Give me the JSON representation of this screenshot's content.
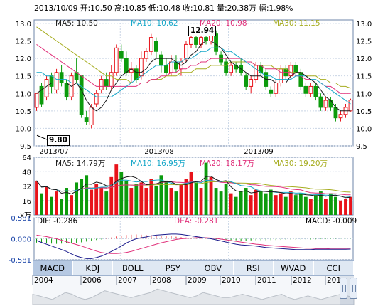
{
  "quote": {
    "date": "2013/10/09",
    "open_label": "开:",
    "open": "10.50",
    "high_label": "高:",
    "high": "10.85",
    "low_label": "低:",
    "low": "10.48",
    "close_label": "收:",
    "close": "10.81",
    "volume_label": "量:",
    "volume": "20.38万",
    "change_label": "幅:",
    "change": "1.98%"
  },
  "colors": {
    "up": "#e8131a",
    "down": "#0c9b0c",
    "ma5": "#1a1a1a",
    "ma10": "#16a7c8",
    "ma20": "#e0307a",
    "ma30": "#a7ad20",
    "grid": "#c9d5e5",
    "frame": "#6c84a8"
  },
  "chart_data": [
    {
      "type": "candlestick",
      "title": "",
      "x_ticks": [
        "2013/07",
        "2013/08",
        "2013/09"
      ],
      "y_ticks": [
        "13.0",
        "12.5",
        "12.0",
        "11.5",
        "11.0",
        "10.5",
        "10.0",
        "9.5"
      ],
      "ylim": [
        9.5,
        13.1
      ],
      "ma_labels": [
        {
          "name": "MA5",
          "value": "10.50"
        },
        {
          "name": "MA10",
          "value": "10.62"
        },
        {
          "name": "MA20",
          "value": "10.98"
        },
        {
          "name": "MA30",
          "value": "11.15"
        }
      ],
      "annotations": {
        "max": "12.94",
        "min": "9.80"
      },
      "candles": [
        [
          10.6,
          11.0,
          11.0,
          10.5
        ],
        [
          11.2,
          10.7,
          11.3,
          10.6
        ],
        [
          10.9,
          11.4,
          11.5,
          10.8
        ],
        [
          11.5,
          11.2,
          11.6,
          11.0
        ],
        [
          11.1,
          11.6,
          11.7,
          11.0
        ],
        [
          11.6,
          11.3,
          11.8,
          11.2
        ],
        [
          11.3,
          10.9,
          11.4,
          10.8
        ],
        [
          10.9,
          11.5,
          11.6,
          10.8
        ],
        [
          11.6,
          11.4,
          12.0,
          11.3
        ],
        [
          11.5,
          10.4,
          11.5,
          10.3
        ],
        [
          10.3,
          10.2,
          10.5,
          10.1
        ],
        [
          10.1,
          10.6,
          10.7,
          10.0
        ],
        [
          10.7,
          11.0,
          11.1,
          10.6
        ],
        [
          11.1,
          11.4,
          11.5,
          11.0
        ],
        [
          11.4,
          11.2,
          11.6,
          11.1
        ],
        [
          11.2,
          11.6,
          11.8,
          11.1
        ],
        [
          11.6,
          12.3,
          12.4,
          11.5
        ],
        [
          12.2,
          12.0,
          12.4,
          11.9
        ],
        [
          12.0,
          11.6,
          12.2,
          11.5
        ],
        [
          11.6,
          11.7,
          11.9,
          11.3
        ],
        [
          11.7,
          11.4,
          11.8,
          11.3
        ],
        [
          11.5,
          12.0,
          12.2,
          11.4
        ],
        [
          12.0,
          12.2,
          12.3,
          11.9
        ],
        [
          12.2,
          12.6,
          12.7,
          12.1
        ],
        [
          12.5,
          12.2,
          12.6,
          12.0
        ],
        [
          12.1,
          11.8,
          12.2,
          11.6
        ],
        [
          11.8,
          11.6,
          12.0,
          11.5
        ],
        [
          11.6,
          11.9,
          12.1,
          11.5
        ],
        [
          11.9,
          11.7,
          12.1,
          11.6
        ],
        [
          11.7,
          11.9,
          12.0,
          11.5
        ],
        [
          12.0,
          12.4,
          12.5,
          11.9
        ],
        [
          12.4,
          12.6,
          12.8,
          12.3
        ],
        [
          12.6,
          12.4,
          12.7,
          12.3
        ],
        [
          12.4,
          12.6,
          12.7,
          12.3
        ],
        [
          12.6,
          12.5,
          12.94,
          12.4
        ],
        [
          12.5,
          12.7,
          12.8,
          12.4
        ],
        [
          12.7,
          12.2,
          12.8,
          12.1
        ],
        [
          12.1,
          11.9,
          12.2,
          11.8
        ],
        [
          11.9,
          11.6,
          12.0,
          11.5
        ],
        [
          11.6,
          11.8,
          11.9,
          11.5
        ],
        [
          11.8,
          11.7,
          11.9,
          11.6
        ],
        [
          11.8,
          11.6,
          12.0,
          11.5
        ],
        [
          11.5,
          11.2,
          11.6,
          11.1
        ],
        [
          11.2,
          11.4,
          11.5,
          11.0
        ],
        [
          11.4,
          11.8,
          11.9,
          11.3
        ],
        [
          11.8,
          11.6,
          11.9,
          11.5
        ],
        [
          11.6,
          11.2,
          11.7,
          11.1
        ],
        [
          11.1,
          11.0,
          11.2,
          10.9
        ],
        [
          11.0,
          11.3,
          11.4,
          10.9
        ],
        [
          11.3,
          11.7,
          11.8,
          11.2
        ],
        [
          11.7,
          11.5,
          11.8,
          11.4
        ],
        [
          11.5,
          11.8,
          11.9,
          11.4
        ],
        [
          11.8,
          11.6,
          11.9,
          11.5
        ],
        [
          11.6,
          11.2,
          11.7,
          11.1
        ],
        [
          11.2,
          11.0,
          11.3,
          10.9
        ],
        [
          11.0,
          11.2,
          11.3,
          10.9
        ],
        [
          11.2,
          10.9,
          11.3,
          10.8
        ],
        [
          10.9,
          10.6,
          11.0,
          10.5
        ],
        [
          10.6,
          10.8,
          10.9,
          10.5
        ],
        [
          10.8,
          10.6,
          10.9,
          10.5
        ],
        [
          10.6,
          10.3,
          10.7,
          10.2
        ],
        [
          10.3,
          10.4,
          10.5,
          10.2
        ],
        [
          10.4,
          10.6,
          10.7,
          10.3
        ],
        [
          10.5,
          10.81,
          10.85,
          10.48
        ]
      ],
      "ma": {
        "ma5": [
          11.0,
          11.1,
          11.2,
          11.3,
          11.3,
          11.3,
          11.3,
          11.2,
          11.3,
          11.1,
          10.8,
          10.6,
          10.5,
          10.6,
          10.8,
          11.1,
          11.3,
          11.5,
          11.6,
          11.7,
          11.6,
          11.6,
          11.7,
          11.9,
          12.0,
          12.0,
          12.0,
          12.0,
          11.9,
          11.8,
          11.9,
          12.1,
          12.2,
          12.4,
          12.5,
          12.5,
          12.4,
          12.3,
          12.1,
          11.9,
          11.8,
          11.7,
          11.6,
          11.5,
          11.5,
          11.5,
          11.4,
          11.4,
          11.3,
          11.3,
          11.3,
          11.5,
          11.6,
          11.6,
          11.5,
          11.4,
          11.3,
          11.1,
          10.9,
          10.8,
          10.6,
          10.5,
          10.5,
          10.5
        ],
        "ma10": [
          11.6,
          11.6,
          11.5,
          11.5,
          11.4,
          11.4,
          11.4,
          11.3,
          11.3,
          11.2,
          11.1,
          11.0,
          10.9,
          10.9,
          10.9,
          10.9,
          11.0,
          11.1,
          11.2,
          11.3,
          11.4,
          11.5,
          11.6,
          11.7,
          11.8,
          11.8,
          11.8,
          11.9,
          11.9,
          11.9,
          12.0,
          12.0,
          12.1,
          12.2,
          12.2,
          12.3,
          12.3,
          12.3,
          12.2,
          12.2,
          12.1,
          12.0,
          11.9,
          11.8,
          11.7,
          11.6,
          11.5,
          11.5,
          11.4,
          11.4,
          11.4,
          11.4,
          11.5,
          11.5,
          11.5,
          11.4,
          11.4,
          11.3,
          11.2,
          11.1,
          11.0,
          10.9,
          10.8,
          10.7
        ],
        "ma20": [
          12.4,
          12.3,
          12.2,
          12.1,
          12.0,
          11.9,
          11.8,
          11.7,
          11.6,
          11.5,
          11.4,
          11.3,
          11.2,
          11.2,
          11.2,
          11.2,
          11.2,
          11.2,
          11.2,
          11.2,
          11.2,
          11.3,
          11.3,
          11.4,
          11.4,
          11.5,
          11.5,
          11.6,
          11.6,
          11.7,
          11.7,
          11.8,
          11.8,
          11.9,
          11.9,
          12.0,
          12.0,
          12.0,
          12.0,
          12.0,
          12.0,
          12.0,
          11.9,
          11.9,
          11.8,
          11.8,
          11.7,
          11.7,
          11.7,
          11.6,
          11.6,
          11.6,
          11.5,
          11.5,
          11.4,
          11.4,
          11.3,
          11.3,
          11.2,
          11.2,
          11.1,
          11.0,
          11.0,
          11.0
        ],
        "ma30": [
          12.9,
          12.8,
          12.7,
          12.6,
          12.5,
          12.4,
          12.3,
          12.2,
          12.1,
          12.0,
          11.9,
          11.8,
          11.7,
          11.6,
          11.5,
          11.5,
          11.4,
          11.4,
          11.4,
          11.3,
          11.3,
          11.3,
          11.3,
          11.4,
          11.4,
          11.4,
          11.5,
          11.5,
          11.5,
          11.6,
          11.6,
          11.6,
          11.7,
          11.7,
          11.7,
          11.8,
          11.8,
          11.8,
          11.8,
          11.9,
          11.9,
          11.9,
          11.9,
          11.9,
          11.8,
          11.8,
          11.8,
          11.8,
          11.7,
          11.7,
          11.7,
          11.6,
          11.6,
          11.6,
          11.5,
          11.5,
          11.5,
          11.4,
          11.4,
          11.3,
          11.3,
          11.2,
          11.2,
          11.15
        ]
      }
    },
    {
      "type": "bar",
      "title": "",
      "y_ticks": [
        "64",
        "48",
        "32",
        "16"
      ],
      "unit": "x万",
      "ylim": [
        0,
        64
      ],
      "ma_labels": [
        {
          "name": "MA5",
          "value": "14.79万"
        },
        {
          "name": "MA10",
          "value": "16.95万"
        },
        {
          "name": "MA20",
          "value": "18.17万"
        },
        {
          "name": "MA30",
          "value": "19.20万"
        }
      ],
      "values": [
        38,
        24,
        32,
        20,
        26,
        18,
        30,
        22,
        36,
        40,
        44,
        28,
        34,
        30,
        26,
        42,
        56,
        48,
        38,
        30,
        34,
        36,
        30,
        40,
        32,
        44,
        38,
        30,
        26,
        34,
        40,
        48,
        36,
        30,
        58,
        42,
        30,
        26,
        34,
        24,
        20,
        26,
        30,
        22,
        28,
        26,
        24,
        28,
        22,
        24,
        20,
        26,
        22,
        24,
        20,
        18,
        22,
        26,
        18,
        24,
        20,
        16,
        18,
        20
      ]
    },
    {
      "type": "line",
      "title": "",
      "y_ticks": [
        "0.581",
        "0.000",
        "-0.581"
      ],
      "ylim": [
        -0.581,
        0.581
      ],
      "labels": {
        "dif_label": "DIF:",
        "dif": "-0.286",
        "dea_label": "DEA:",
        "dea": "-0.281",
        "macd_label": "MACD:",
        "macd": "-0.009"
      },
      "dif": [
        -0.05,
        -0.1,
        -0.15,
        -0.2,
        -0.25,
        -0.3,
        -0.35,
        -0.42,
        -0.48,
        -0.52,
        -0.55,
        -0.55,
        -0.52,
        -0.48,
        -0.42,
        -0.35,
        -0.28,
        -0.2,
        -0.12,
        -0.05,
        0.0,
        0.03,
        0.05,
        0.08,
        0.1,
        0.11,
        0.12,
        0.13,
        0.13,
        0.12,
        0.1,
        0.08,
        0.06,
        0.04,
        0.02,
        0.0,
        -0.03,
        -0.06,
        -0.09,
        -0.12,
        -0.15,
        -0.17,
        -0.18,
        -0.19,
        -0.2,
        -0.22,
        -0.24,
        -0.25,
        -0.26,
        -0.27,
        -0.28,
        -0.29,
        -0.3,
        -0.3,
        -0.3,
        -0.3,
        -0.29,
        -0.29,
        -0.29,
        -0.29,
        -0.29,
        -0.29,
        -0.29,
        -0.286
      ],
      "dea": [
        0.1,
        0.08,
        0.06,
        0.03,
        0.0,
        -0.04,
        -0.08,
        -0.12,
        -0.16,
        -0.2,
        -0.25,
        -0.3,
        -0.34,
        -0.38,
        -0.4,
        -0.41,
        -0.41,
        -0.4,
        -0.38,
        -0.35,
        -0.31,
        -0.27,
        -0.23,
        -0.19,
        -0.15,
        -0.11,
        -0.08,
        -0.05,
        -0.02,
        0.0,
        0.01,
        0.02,
        0.03,
        0.03,
        0.03,
        0.02,
        0.01,
        -0.01,
        -0.03,
        -0.05,
        -0.07,
        -0.09,
        -0.11,
        -0.13,
        -0.15,
        -0.16,
        -0.18,
        -0.19,
        -0.2,
        -0.21,
        -0.22,
        -0.23,
        -0.24,
        -0.25,
        -0.26,
        -0.26,
        -0.27,
        -0.27,
        -0.27,
        -0.28,
        -0.28,
        -0.28,
        -0.28,
        -0.281
      ],
      "macd": [
        -0.3,
        -0.32,
        -0.35,
        -0.38,
        -0.4,
        -0.38,
        -0.36,
        -0.34,
        -0.32,
        -0.28,
        -0.22,
        -0.16,
        -0.1,
        -0.05,
        0.02,
        0.1,
        0.18,
        0.24,
        0.3,
        0.32,
        0.34,
        0.32,
        0.3,
        0.28,
        0.26,
        0.24,
        0.22,
        0.2,
        0.16,
        0.12,
        0.1,
        0.08,
        0.06,
        0.04,
        0.02,
        0.0,
        -0.04,
        -0.06,
        -0.08,
        -0.1,
        -0.12,
        -0.14,
        -0.14,
        -0.13,
        -0.12,
        -0.12,
        -0.12,
        -0.11,
        -0.1,
        -0.09,
        -0.08,
        -0.08,
        -0.07,
        -0.06,
        -0.05,
        -0.05,
        -0.04,
        -0.03,
        -0.03,
        -0.02,
        -0.02,
        -0.01,
        -0.01,
        -0.009
      ]
    },
    {
      "type": "area",
      "title": "",
      "x_ticks": [
        "2004",
        "2006",
        "2007",
        "2008",
        "2009",
        "2010",
        "2011",
        "2012",
        "201"
      ],
      "values": [
        12,
        11,
        10,
        9,
        11,
        13,
        12,
        10,
        9,
        10,
        12,
        14,
        13,
        12,
        11,
        10,
        11,
        12,
        13,
        15,
        14,
        13,
        12,
        11,
        10,
        11,
        13,
        12,
        11,
        10,
        10,
        11,
        12,
        11,
        10,
        9,
        10,
        11,
        12,
        10,
        9,
        10,
        11,
        10,
        9,
        10,
        11,
        12,
        11,
        10
      ]
    }
  ],
  "indicator_tabs": [
    "MACD",
    "KDJ",
    "BOLL",
    "PSY",
    "OBV",
    "RSI",
    "WVAD",
    "CCI"
  ],
  "active_tab": "MACD"
}
